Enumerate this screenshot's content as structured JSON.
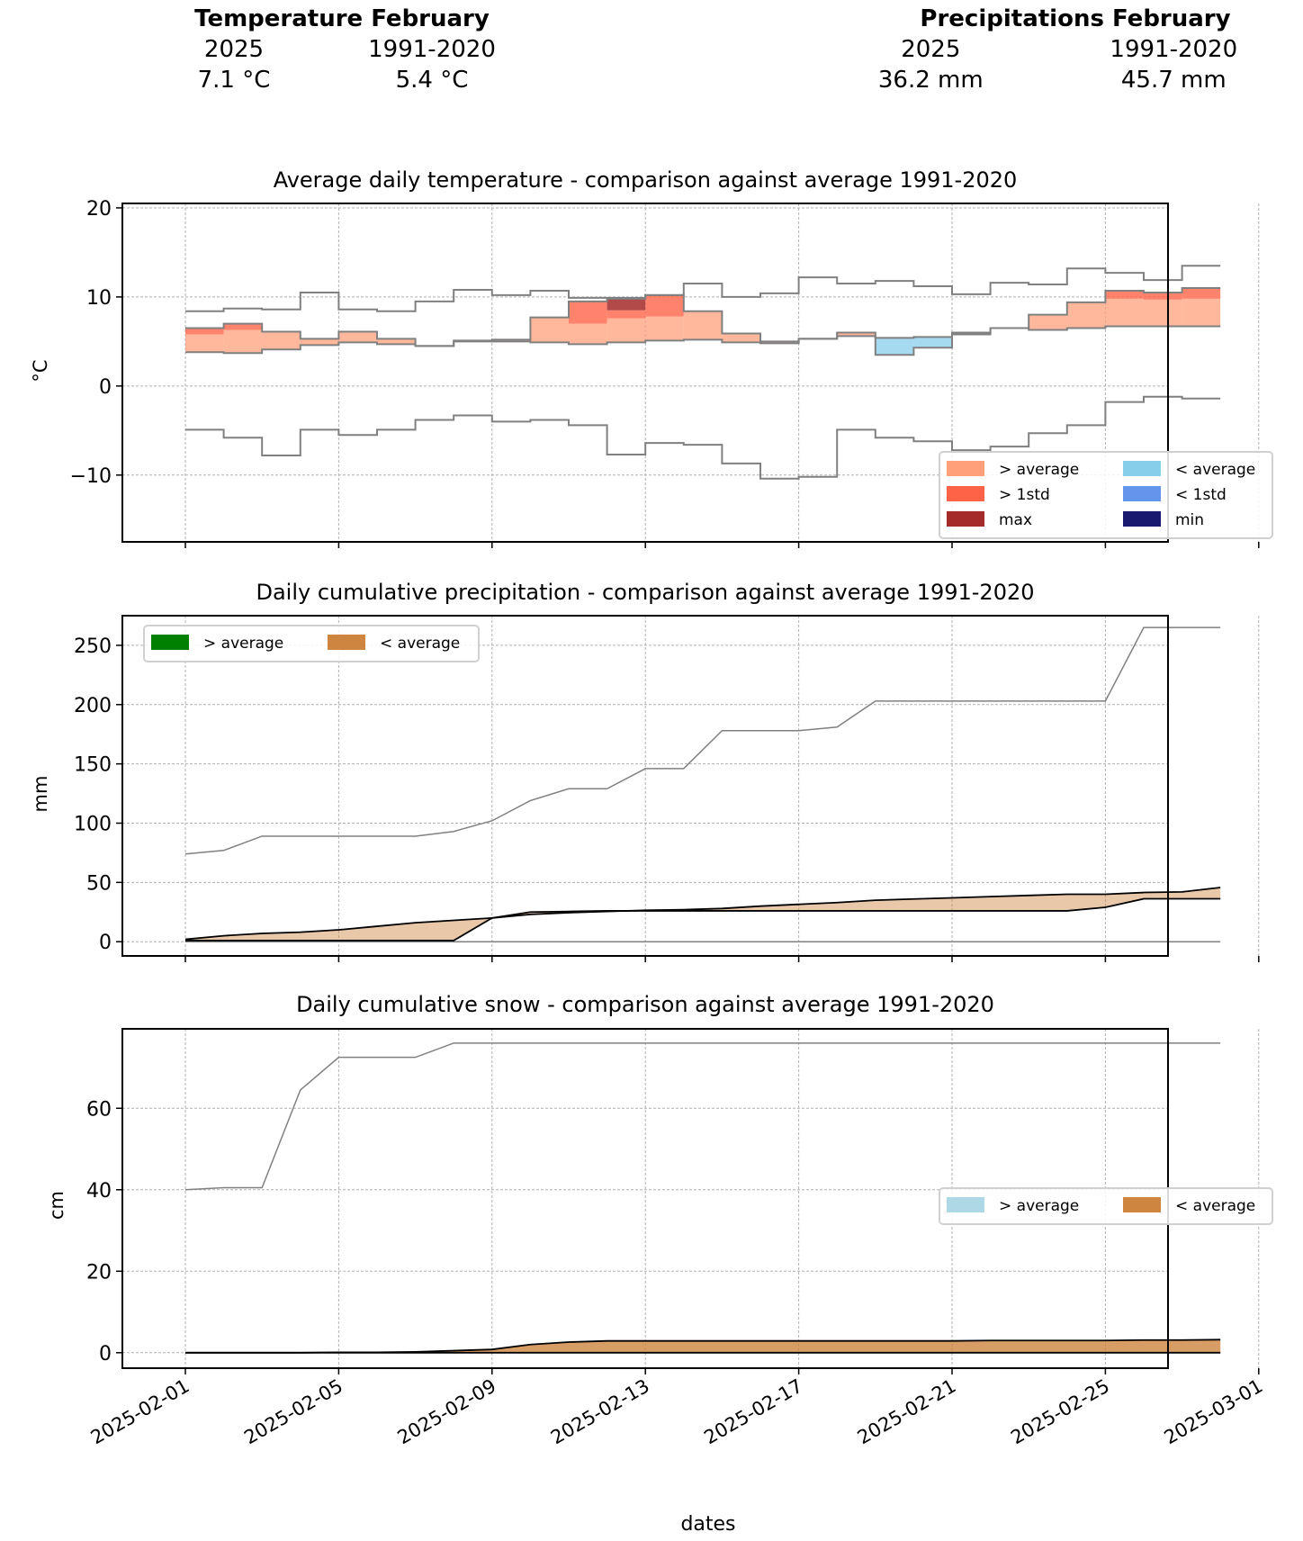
{
  "summary": {
    "temperature": {
      "title": "Temperature February",
      "col_labels": [
        "2025",
        "1991-2020"
      ],
      "values": [
        "7.1 °C",
        "5.4 °C"
      ]
    },
    "precipitation": {
      "title": "Precipitations February",
      "col_labels": [
        "2025",
        "1991-2020"
      ],
      "values": [
        "36.2 mm",
        "45.7 mm"
      ]
    }
  },
  "colors": {
    "above_average": "#ffa07a",
    "above_1std": "#ff6347",
    "max": "#a52a2a",
    "below_average": "#87ceeb",
    "below_1std": "#6495ed",
    "min": "#191970",
    "precip_above": "#008000",
    "precip_below": "#cd853f",
    "snow_above": "#add8e6",
    "snow_below": "#cd853f",
    "envelope": "#808080"
  },
  "x_axis": {
    "label": "dates",
    "ticks": [
      "2025-02-01",
      "2025-02-05",
      "2025-02-09",
      "2025-02-13",
      "2025-02-17",
      "2025-02-21",
      "2025-02-25",
      "2025-03-01"
    ],
    "tick_day_offsets": [
      0,
      4,
      8,
      12,
      16,
      20,
      24,
      28
    ]
  },
  "chart_data": [
    {
      "type": "area",
      "id": "temperature",
      "title": "Average daily temperature - comparison against average 1991-2020",
      "xlabel": "",
      "ylabel": "°C",
      "ylim": [
        -17.5,
        20.5
      ],
      "yticks": [
        20,
        10,
        0,
        -10
      ],
      "ytick_labels": [
        "20",
        "10",
        "0",
        "−10"
      ],
      "grid": true,
      "step": true,
      "legend_placement": "lower-right",
      "legend": [
        {
          "label": "> average",
          "color_key": "above_average"
        },
        {
          "label": "< average",
          "color_key": "below_average"
        },
        {
          "label": "> 1std",
          "color_key": "above_1std"
        },
        {
          "label": "< 1std",
          "color_key": "below_1std"
        },
        {
          "label": "max",
          "color_key": "max"
        },
        {
          "label": "min",
          "color_key": "min"
        }
      ],
      "x_days": [
        0,
        1,
        2,
        3,
        4,
        5,
        6,
        7,
        8,
        9,
        10,
        11,
        12,
        13,
        14,
        15,
        16,
        17,
        18,
        19,
        20,
        21,
        22,
        23,
        24,
        25,
        26,
        27
      ],
      "series": [
        {
          "name": "record max 1991-2020",
          "values": [
            8.4,
            8.7,
            8.6,
            10.5,
            8.6,
            8.4,
            9.5,
            10.8,
            10.2,
            10.7,
            9.9,
            9.9,
            10.2,
            11.5,
            10.0,
            10.4,
            12.2,
            11.5,
            11.8,
            11.2,
            10.3,
            11.6,
            11.4,
            13.2,
            12.7,
            11.9,
            13.5,
            11.8
          ]
        },
        {
          "name": "record min 1991-2020",
          "values": [
            -4.9,
            -5.8,
            -7.8,
            -4.9,
            -5.5,
            -4.9,
            -3.8,
            -3.3,
            -4.0,
            -3.8,
            -4.4,
            -7.7,
            -6.4,
            -6.6,
            -8.7,
            -10.4,
            -10.2,
            -4.9,
            -5.8,
            -6.2,
            -7.2,
            -6.8,
            -5.3,
            -4.4,
            -1.8,
            -1.2,
            -1.4,
            -0.9
          ]
        },
        {
          "name": "average 1991-2020",
          "values": [
            3.8,
            3.7,
            4.1,
            4.6,
            4.9,
            4.7,
            4.5,
            5.0,
            5.0,
            4.9,
            4.7,
            4.9,
            5.1,
            5.2,
            4.9,
            4.8,
            5.3,
            5.6,
            5.4,
            5.5,
            5.8,
            6.5,
            6.3,
            6.5,
            6.7,
            6.7,
            6.7,
            6.9
          ]
        },
        {
          "name": "average + 1std",
          "values": [
            5.8,
            6.3,
            7.5,
            7.6,
            7.9,
            7.7,
            7.6,
            8.0,
            8.1,
            8.2,
            7.0,
            7.6,
            7.8,
            8.6,
            8.2,
            8.1,
            8.4,
            8.8,
            8.7,
            8.8,
            9.0,
            9.4,
            9.6,
            9.7,
            9.8,
            9.7,
            9.8,
            9.9
          ]
        },
        {
          "name": "average - 1std",
          "values": [
            1.5,
            1.3,
            1.6,
            2.0,
            2.2,
            2.0,
            1.8,
            2.3,
            2.3,
            2.2,
            2.0,
            2.2,
            2.4,
            2.5,
            2.2,
            2.1,
            2.6,
            2.9,
            2.7,
            2.8,
            3.1,
            3.7,
            3.5,
            3.7,
            3.9,
            3.9,
            3.9,
            4.1
          ]
        },
        {
          "name": "2025",
          "values": [
            6.5,
            7.0,
            6.1,
            5.3,
            6.1,
            5.3,
            4.5,
            5.1,
            5.2,
            7.7,
            9.5,
            9.8,
            10.2,
            8.4,
            5.9,
            5.0,
            5.3,
            6.0,
            3.5,
            4.3,
            6.0,
            6.5,
            8.0,
            9.4,
            10.7,
            10.5,
            11.0,
            9.8
          ]
        }
      ],
      "max_threshold_days": [
        11
      ],
      "max_threshold_value": 8.5
    },
    {
      "type": "area",
      "id": "precipitation",
      "title": "Daily cumulative precipitation - comparison against average 1991-2020",
      "xlabel": "",
      "ylabel": "mm",
      "ylim": [
        -12,
        275
      ],
      "yticks": [
        0,
        50,
        100,
        150,
        200,
        250
      ],
      "ytick_labels": [
        "0",
        "50",
        "100",
        "150",
        "200",
        "250"
      ],
      "grid": true,
      "legend_placement": "upper-left",
      "legend": [
        {
          "label": "> average",
          "color_key": "precip_above"
        },
        {
          "label": "< average",
          "color_key": "precip_below"
        }
      ],
      "x_days": [
        0,
        1,
        2,
        3,
        4,
        5,
        6,
        7,
        8,
        9,
        10,
        11,
        12,
        13,
        14,
        15,
        16,
        17,
        18,
        19,
        20,
        21,
        22,
        23,
        24,
        25,
        26,
        27
      ],
      "series": [
        {
          "name": "max 1991-2020",
          "values": [
            74,
            77,
            89,
            89,
            89,
            89,
            89,
            93,
            102,
            119,
            129,
            129,
            146,
            146,
            178,
            178,
            178,
            181,
            203,
            203,
            203,
            203,
            203,
            203,
            203,
            265,
            265,
            265
          ]
        },
        {
          "name": "min 1991-2020",
          "values": [
            0,
            0,
            0,
            0,
            0,
            0,
            0,
            0,
            0,
            0,
            0,
            0,
            0,
            0,
            0,
            0,
            0,
            0,
            0,
            0,
            0,
            0,
            0,
            0,
            0,
            0,
            0,
            0
          ]
        },
        {
          "name": "average 1991-2020",
          "values": [
            2,
            5,
            7,
            8,
            10,
            13,
            16,
            18,
            20,
            23,
            24.5,
            25.5,
            26.5,
            27,
            28,
            30,
            31.5,
            33,
            35,
            36,
            37,
            38,
            39,
            40,
            40,
            41.5,
            42,
            45.7
          ]
        },
        {
          "name": "2025",
          "values": [
            1,
            1,
            1,
            1,
            1,
            1,
            1,
            1,
            20,
            25,
            25.5,
            26,
            26,
            26,
            26,
            26,
            26,
            26,
            26,
            26,
            26,
            26,
            26,
            26,
            29,
            36.2,
            36.2,
            36.2
          ]
        }
      ]
    },
    {
      "type": "area",
      "id": "snow",
      "title": "Daily cumulative snow - comparison against average 1991-2020",
      "xlabel": "dates",
      "ylabel": "cm",
      "ylim": [
        -3.8,
        79.5
      ],
      "yticks": [
        0,
        20,
        40,
        60
      ],
      "ytick_labels": [
        "0",
        "20",
        "40",
        "60"
      ],
      "grid": true,
      "legend_placement": "center-right",
      "legend": [
        {
          "label": "> average",
          "color_key": "snow_above"
        },
        {
          "label": "< average",
          "color_key": "snow_below"
        }
      ],
      "x_days": [
        0,
        1,
        2,
        3,
        4,
        5,
        6,
        7,
        8,
        9,
        10,
        11,
        12,
        13,
        14,
        15,
        16,
        17,
        18,
        19,
        20,
        21,
        22,
        23,
        24,
        25,
        26,
        27
      ],
      "series": [
        {
          "name": "max 1991-2020",
          "values": [
            40,
            40.5,
            40.5,
            64.5,
            72.5,
            72.5,
            72.5,
            76,
            76,
            76,
            76,
            76,
            76,
            76,
            76,
            76,
            76,
            76,
            76,
            76,
            76,
            76,
            76,
            76,
            76,
            76,
            76,
            76
          ]
        },
        {
          "name": "average 1991-2020",
          "values": [
            0,
            0,
            0,
            0,
            0.1,
            0.1,
            0.2,
            0.5,
            0.8,
            2.0,
            2.6,
            2.9,
            2.9,
            2.9,
            2.9,
            2.9,
            2.9,
            2.9,
            2.9,
            2.9,
            2.9,
            3.0,
            3.0,
            3.0,
            3.0,
            3.1,
            3.1,
            3.2
          ]
        },
        {
          "name": "2025",
          "values": [
            0,
            0,
            0,
            0,
            0,
            0,
            0,
            0,
            0,
            0,
            0,
            0,
            0,
            0,
            0,
            0,
            0,
            0,
            0,
            0,
            0,
            0,
            0,
            0,
            0,
            0,
            0,
            0
          ]
        }
      ]
    }
  ]
}
